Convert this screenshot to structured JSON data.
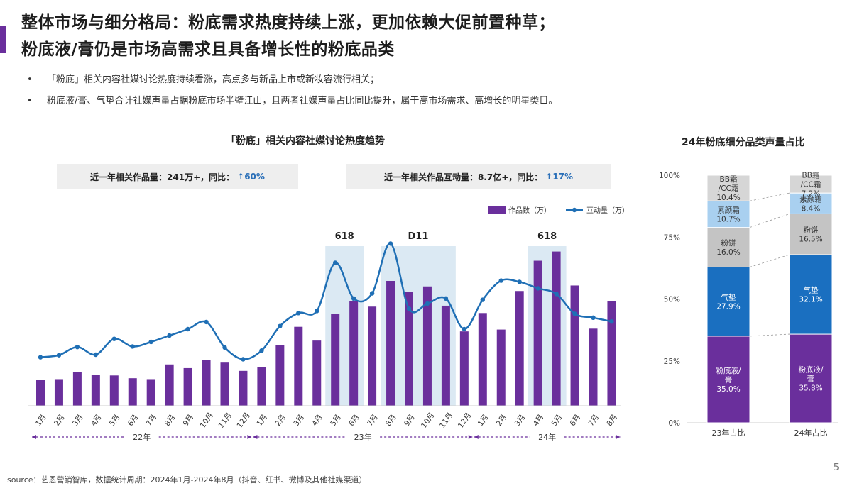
{
  "header": {
    "title_line1": "整体市场与细分格局：粉底需求热度持续上涨，更加依赖大促前置种草；",
    "title_line2": "粉底液/膏仍是市场高需求且具备增长性的粉底品类"
  },
  "bullets": [
    "「粉底」相关内容社媒讨论热度持续看涨，高点多与新品上市或新妆容流行相关；",
    "粉底液/膏、气垫合计社媒声量占据粉底市场半壁江山，且两者社媒声量占比同比提升，属于高市场需求、高增长的明星类目。"
  ],
  "bullet_symbol": "•",
  "summary": {
    "works_label": "近一年相关作品量：241万+，同比：",
    "works_value": "↑60%",
    "interaction_label": "近一年相关作品互动量：8.7亿+，同比：",
    "interaction_value": "↑17%"
  },
  "footer": {
    "source": "source：艺恩营销智库，数据统计周期：2024年1月-2024年8月（抖音、红书、微博及其他社媒渠道）",
    "page": "5"
  },
  "colors": {
    "accent": "#6a2f9c",
    "bar": "#6a2f9c",
    "line": "#1f6fb5",
    "highlight": "#dbe9f3",
    "liquid": "#6a2f9c",
    "cushion": "#1a6fc0",
    "powder": "#c4c4c4",
    "primer": "#a9d0f0",
    "bbcc": "#d6d6d6"
  },
  "chart_data": [
    {
      "type": "bar+line",
      "title": "「粉底」相关内容社媒讨论热度趋势",
      "categories": [
        "1月",
        "2月",
        "3月",
        "4月",
        "5月",
        "6月",
        "7月",
        "8月",
        "9月",
        "10月",
        "11月",
        "12月",
        "1月",
        "2月",
        "3月",
        "4月",
        "5月",
        "6月",
        "7月",
        "8月",
        "9月",
        "10月",
        "11月",
        "12月",
        "1月",
        "2月",
        "3月",
        "4月",
        "5月",
        "6月",
        "7月",
        "8月"
      ],
      "year_groups": [
        {
          "label": "22年",
          "start": 0,
          "end": 11
        },
        {
          "label": "23年",
          "start": 12,
          "end": 23
        },
        {
          "label": "24年",
          "start": 24,
          "end": 31
        }
      ],
      "series": [
        {
          "name": "作品数（万）",
          "type": "bar",
          "values": [
            28,
            29,
            37,
            34,
            33,
            30,
            29,
            45,
            41,
            50,
            47,
            38,
            42,
            66,
            86,
            71,
            100,
            114,
            108,
            136,
            124,
            130,
            109,
            81,
            101,
            83,
            125,
            158,
            168,
            131,
            84,
            114
          ]
        },
        {
          "name": "互动量（万）",
          "type": "line",
          "values": [
            190,
            198,
            230,
            200,
            262,
            232,
            250,
            275,
            300,
            328,
            228,
            182,
            216,
            312,
            363,
            371,
            560,
            420,
            440,
            635,
            380,
            400,
            420,
            300,
            415,
            490,
            485,
            460,
            438,
            360,
            345,
            330
          ]
        }
      ],
      "highlights": [
        {
          "label": "618",
          "start": 16,
          "end": 17
        },
        {
          "label": "D11",
          "start": 19,
          "end": 22
        },
        {
          "label": "618",
          "start": 27,
          "end": 28
        }
      ]
    },
    {
      "type": "bar",
      "stacked": true,
      "title": "24年粉底细分品类声量占比",
      "categories": [
        "23年占比",
        "24年占比"
      ],
      "ylim": [
        0,
        100
      ],
      "yticks": [
        "0%",
        "25%",
        "50%",
        "75%",
        "100%"
      ],
      "series": [
        {
          "name": "粉底液/膏",
          "values": [
            35.0,
            35.8
          ],
          "labels": [
            "粉底液/\n膏\n35.0%",
            "粉底液/\n膏\n35.8%"
          ]
        },
        {
          "name": "气垫",
          "values": [
            27.9,
            32.1
          ],
          "labels": [
            "气垫\n27.9%",
            "气垫\n32.1%"
          ]
        },
        {
          "name": "粉饼",
          "values": [
            16.0,
            16.5
          ],
          "labels": [
            "粉饼\n16.0%",
            "粉饼\n16.5%"
          ]
        },
        {
          "name": "素颜霜",
          "values": [
            10.7,
            8.4
          ],
          "labels": [
            "素颜霜\n10.7%",
            "素颜霜\n8.4%"
          ]
        },
        {
          "name": "BB霜/CC霜",
          "values": [
            10.4,
            7.2
          ],
          "labels": [
            "BB霜\n/CC霜\n10.4%",
            "BB霜\n/CC霜\n7.2%"
          ]
        }
      ]
    }
  ]
}
